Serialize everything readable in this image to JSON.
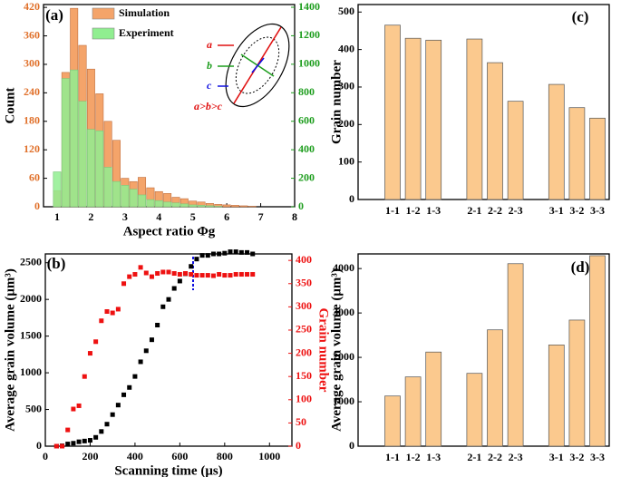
{
  "chart_data": [
    {
      "type": "histogram",
      "panel_label": "(a)",
      "xlabel": "Aspect ratio Φg",
      "ylabel": "Count",
      "bins": [
        0.875,
        1.125,
        1.375,
        1.625,
        1.875,
        2.125,
        2.375,
        2.625,
        2.875,
        3.125,
        3.375,
        3.625,
        3.875,
        4.125,
        4.375,
        4.625,
        4.875,
        5.125,
        5.375,
        5.625,
        5.875,
        6.125,
        6.375,
        6.625,
        6.875
      ],
      "series": [
        {
          "name": "Simulation",
          "color": "#f4a46a",
          "values": [
            34,
            283,
            418,
            340,
            290,
            238,
            180,
            140,
            60,
            53,
            62,
            40,
            32,
            28,
            20,
            17,
            12,
            10,
            7,
            5,
            4,
            3,
            2,
            1
          ]
        },
        {
          "name": "Experiment",
          "color": "#90ee90",
          "axis": "y2",
          "values": [
            245,
            900,
            960,
            740,
            543,
            533,
            277,
            177,
            150,
            123,
            83,
            50,
            43,
            33,
            27,
            20,
            13,
            10,
            7,
            3,
            0,
            0,
            0,
            0
          ]
        }
      ],
      "xlim": [
        0.6,
        8
      ],
      "xticks": [
        1,
        2,
        3,
        4,
        5,
        6,
        7,
        8
      ],
      "ylim": [
        0,
        426
      ],
      "yticks": [
        0,
        60,
        120,
        180,
        240,
        300,
        360,
        420
      ],
      "ycolor": "#e0702a",
      "y2lim": [
        0,
        1419
      ],
      "y2ticks": [
        0,
        200,
        400,
        600,
        800,
        1000,
        1200,
        1400
      ],
      "y2color": "#1f9e1f",
      "legend": "upper left",
      "annotations": [
        "a",
        "b",
        "c",
        "a>b>c"
      ]
    },
    {
      "type": "scatter",
      "panel_label": "(b)",
      "xlabel": "Scanning time (μs)",
      "ylabel": "Average grain volume (μm³)",
      "y2label": "Grain number",
      "x": [
        50,
        75,
        100,
        125,
        150,
        175,
        200,
        225,
        250,
        275,
        300,
        325,
        350,
        375,
        400,
        425,
        450,
        475,
        500,
        525,
        550,
        575,
        600,
        625,
        650,
        675,
        700,
        725,
        750,
        775,
        800,
        825,
        850,
        875,
        900,
        925
      ],
      "series": [
        {
          "color": "#000000",
          "values": [
            0,
            5,
            30,
            40,
            60,
            70,
            80,
            120,
            200,
            300,
            430,
            560,
            700,
            800,
            950,
            1150,
            1300,
            1450,
            1650,
            1900,
            2000,
            2150,
            2250,
            2350,
            2450,
            2550,
            2600,
            2600,
            2620,
            2620,
            2630,
            2650,
            2650,
            2640,
            2640,
            2620
          ]
        },
        {
          "color": "#ee1111",
          "axis": "y2",
          "values": [
            0,
            0,
            35,
            80,
            87,
            150,
            200,
            225,
            270,
            290,
            287,
            295,
            350,
            365,
            370,
            385,
            373,
            365,
            372,
            375,
            375,
            372,
            370,
            372,
            370,
            368,
            368,
            368,
            367,
            370,
            368,
            368,
            370,
            370,
            370,
            370
          ]
        }
      ],
      "xlim": [
        0,
        1100
      ],
      "xticks": [
        0,
        200,
        400,
        600,
        800,
        1000
      ],
      "ylim": [
        0,
        2620
      ],
      "yticks": [
        0,
        500,
        1000,
        1500,
        2000,
        2500
      ],
      "ycolor": "#000000",
      "y2lim": [
        0,
        414
      ],
      "y2ticks": [
        0,
        50,
        100,
        150,
        200,
        250,
        300,
        350,
        400
      ],
      "y2color": "#ee1111"
    },
    {
      "type": "bar",
      "panel_label": "(c)",
      "ylabel": "Grain number",
      "color": "#fbc98e",
      "categories": [
        "1-1",
        "1-2",
        "1-3",
        null,
        "2-1",
        "2-2",
        "2-3",
        null,
        "3-1",
        "3-2",
        "3-3"
      ],
      "values": [
        465,
        430,
        425,
        null,
        428,
        365,
        262,
        null,
        307,
        245,
        217
      ],
      "ylim": [
        0,
        520
      ],
      "yticks": [
        0,
        100,
        200,
        300,
        400,
        500
      ]
    },
    {
      "type": "bar",
      "panel_label": "(d)",
      "ylabel": "Average grain volume (μm³)",
      "color": "#fbc98e",
      "categories": [
        "1-1",
        "1-2",
        "1-3",
        null,
        "2-1",
        "2-2",
        "2-3",
        null,
        "3-1",
        "3-2",
        "3-3"
      ],
      "values": [
        1130,
        1560,
        2120,
        null,
        1640,
        2620,
        4110,
        null,
        2280,
        2840,
        4290
      ],
      "ylim": [
        0,
        4330
      ],
      "yticks": [
        0,
        1000,
        2000,
        3000,
        4000
      ]
    }
  ]
}
